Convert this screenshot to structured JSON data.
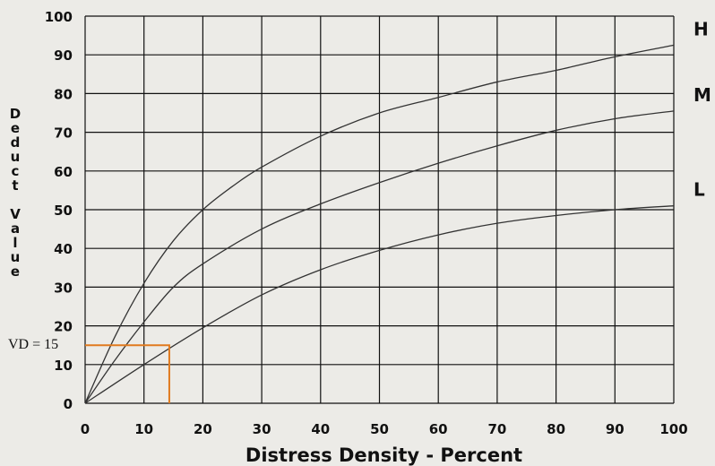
{
  "chart_data": {
    "type": "line",
    "xlabel": "Distress Density - Percent",
    "ylabel": "Deduct Value",
    "xlim": [
      0,
      100
    ],
    "ylim": [
      0,
      100
    ],
    "x_ticks": [
      0,
      10,
      20,
      30,
      40,
      50,
      60,
      70,
      80,
      90,
      100
    ],
    "y_ticks": [
      0,
      10,
      20,
      30,
      40,
      50,
      60,
      70,
      80,
      90,
      100
    ],
    "grid": true,
    "series": [
      {
        "name": "H",
        "x": [
          0,
          5,
          10,
          15,
          20,
          25,
          30,
          40,
          50,
          60,
          70,
          80,
          90,
          100
        ],
        "y": [
          0,
          17,
          31,
          42,
          50,
          56,
          61,
          69,
          75,
          79,
          83,
          86,
          89.5,
          92.5
        ]
      },
      {
        "name": "M",
        "x": [
          0,
          5,
          10,
          15,
          20,
          30,
          40,
          50,
          60,
          70,
          80,
          90,
          100
        ],
        "y": [
          0,
          11,
          21,
          30,
          36,
          45,
          51.5,
          57,
          62,
          66.5,
          70.5,
          73.5,
          75.5
        ]
      },
      {
        "name": "L",
        "x": [
          0,
          10,
          20,
          30,
          40,
          50,
          60,
          70,
          80,
          90,
          100
        ],
        "y": [
          0,
          10,
          19.5,
          28,
          34.5,
          39.5,
          43.5,
          46.5,
          48.5,
          50,
          51
        ]
      }
    ],
    "annotation": {
      "label": "VD = 15",
      "x": 14.3,
      "y": 15,
      "color": "#e07a1f"
    }
  }
}
